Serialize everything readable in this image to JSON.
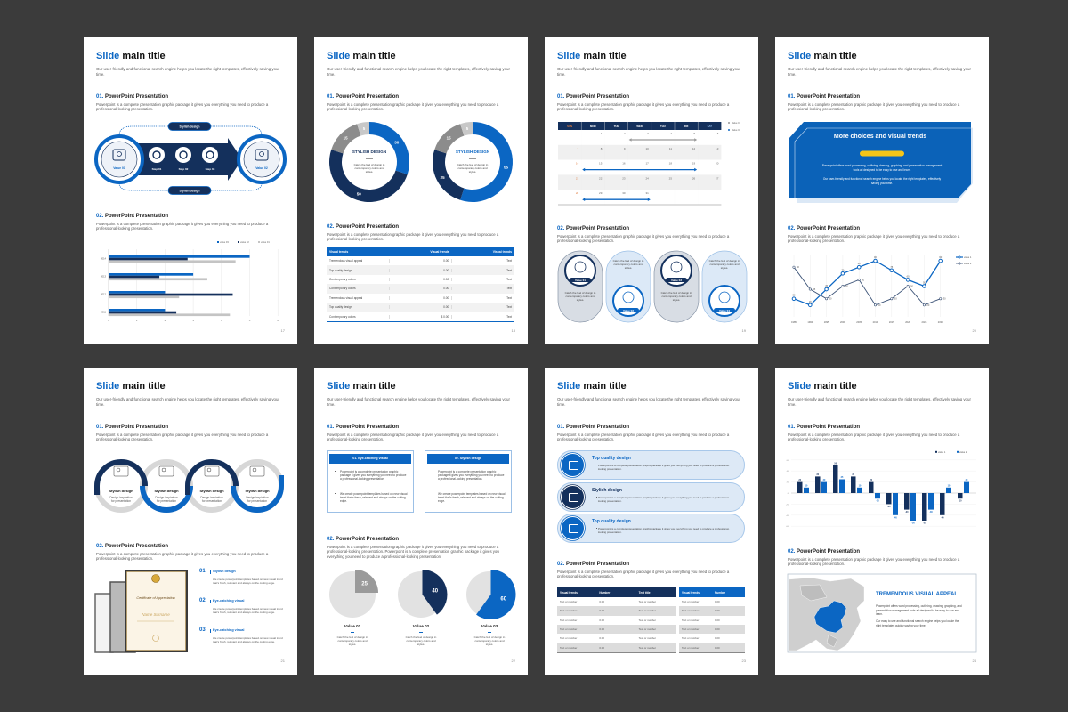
{
  "colors": {
    "background": "#3b3b3b",
    "blue": "#0b66c3",
    "navy": "#14305c",
    "gray": "#9a9a9a",
    "light_gray": "#d9d9d9",
    "orange": "#e07a3c",
    "yellow": "#f5c518"
  },
  "common": {
    "title_accent": "Slide",
    "title_rest": "main title",
    "subtitle": "Our user-friendly and functional search engine helps you locate the right templates, effectively saving your time.",
    "sec1_num": "01.",
    "sec2_num": "02.",
    "sec_title": "PowerPoint Presentation",
    "sec_body": "Powerpoint is a complete presentation graphic package it gives you everything you need to produce a professional-looking presentation."
  },
  "slides": [
    {
      "page": "17",
      "diagram": {
        "top_label": "Stylish design",
        "bottom_label": "Stylish design",
        "start": "Value 01",
        "steps": [
          "Step 01",
          "Step 02",
          "Step 03"
        ],
        "end": "Value 02",
        "icons": [
          "buildings-icon",
          "megaphone-icon",
          "team-icon",
          "meeting-icon",
          "handshake-icon"
        ]
      },
      "chart_data": {
        "type": "bar",
        "orientation": "horizontal",
        "categories": [
          "2014",
          "2013",
          "2012",
          "2011"
        ],
        "series": [
          {
            "name": "value 03",
            "values": [
              5,
              3,
              2,
              2
            ]
          },
          {
            "name": "value 02",
            "values": [
              2.8,
              1.8,
              4.4,
              2.4
            ]
          },
          {
            "name": "value 01",
            "values": [
              4.5,
              3.5,
              2.5,
              4.3
            ]
          }
        ],
        "xlim": [
          0,
          6
        ],
        "xticks": [
          "0",
          "1",
          "2",
          "3",
          "4",
          "5",
          "6"
        ],
        "grid": true,
        "legend": "top-right"
      }
    },
    {
      "page": "18",
      "donuts": [
        {
          "values": [
            30,
            50,
            15,
            5
          ],
          "labels": [
            "30",
            "50",
            "15",
            "5"
          ],
          "title": "STYLISH DESIGN",
          "desc": "Catch the feel of design in contemporary colors and styles."
        },
        {
          "values": [
            55,
            25,
            15,
            5
          ],
          "labels": [
            "55",
            "25",
            "15",
            "5"
          ],
          "title": "STYLISH DESIGN",
          "desc": "Catch the feel of design in contemporary colors and styles."
        }
      ],
      "table": {
        "headers": [
          "Visual trends",
          "Visual trends",
          "Visual trends"
        ],
        "rows": [
          [
            "Tremendous visual appeal",
            "0.00",
            "Text"
          ],
          [
            "Top quality design",
            "0.00",
            "Text"
          ],
          [
            "Contemporary colors",
            "0.00",
            "Text"
          ],
          [
            "Contemporary colors",
            "0.00",
            "Text"
          ],
          [
            "Tremendous visual appeal",
            "0.00",
            "Text"
          ],
          [
            "Top quality design",
            "0.00",
            "Text"
          ],
          [
            "Contemporary colors",
            "$ 0.00",
            "Text"
          ]
        ]
      }
    },
    {
      "page": "19",
      "calendar": {
        "weekdays": [
          "SUN",
          "MON",
          "TUE",
          "WED",
          "THU",
          "FRI",
          "SAT"
        ],
        "days": [
          "1",
          "2",
          "3",
          "4",
          "5",
          "6",
          "7",
          "8",
          "9",
          "10",
          "11",
          "12",
          "13",
          "14",
          "15",
          "16",
          "17",
          "18",
          "19",
          "20",
          "21",
          "22",
          "23",
          "24",
          "25",
          "26",
          "27",
          "28",
          "29",
          "30",
          "31"
        ],
        "first_weekday": 1,
        "legend": [
          "Value 01",
          "Value 02"
        ],
        "ranges": [
          {
            "series": 0,
            "from": 3,
            "to": 5
          },
          {
            "series": 1,
            "from": 15,
            "to": 19
          },
          {
            "series": 1,
            "from": 29,
            "to": 31
          }
        ]
      },
      "cards": [
        {
          "label": "Value 01",
          "text": "Catch the feel of design in contemporary colors and styles.",
          "icon": "megaphone-icon"
        },
        {
          "label": "Value 02",
          "text": "Catch the feel of design in contemporary colors and styles.",
          "icon": "team-icon"
        },
        {
          "label": "Value 03",
          "text": "Catch the feel of design in contemporary colors and styles.",
          "icon": "presenter-icon"
        },
        {
          "label": "Value 04",
          "text": "Catch the feel of design in contemporary colors and styles.",
          "icon": "globe-icon"
        }
      ]
    },
    {
      "page": "20",
      "banner": {
        "title": "More choices and visual trends",
        "para1": "Powerpoint offers word processing, outlining, drawing, graphing, and presentation management tools all designed to be easy to use and learn.",
        "para2": "Our user-friendly and functional search engine helps you locate the right templates, effectively saving your time."
      },
      "chart_data": {
        "type": "line",
        "x": [
          "1985",
          "1990",
          "1995",
          "2000",
          "2005",
          "2010",
          "2015",
          "2020",
          "2025",
          "2030"
        ],
        "series": [
          {
            "name": "value 1",
            "values": [
              30,
              20,
              45,
              70,
              80,
              90,
              75,
              60,
              50,
              90
            ]
          },
          {
            "name": "value 2",
            "values": [
              80,
              45,
              30,
              50,
              60,
              20,
              30,
              50,
              20,
              30
            ]
          }
        ],
        "ylim": [
          0,
          100
        ],
        "grid": true,
        "legend": "top-right"
      }
    },
    {
      "page": "21",
      "loops": [
        {
          "title": "Stylish design",
          "desc": "Design inspiration for presentation"
        },
        {
          "title": "Stylish design",
          "desc": "Design inspiration for presentation"
        },
        {
          "title": "Stylish design",
          "desc": "Design inspiration for presentation"
        },
        {
          "title": "Stylish design",
          "desc": "Design inspiration for presentation"
        }
      ],
      "certificate": {
        "title": "Certificate of Appreciation",
        "name": "Name Surname"
      },
      "list": [
        {
          "num": "01",
          "title": "Stylish design",
          "text": "We create powerpoint templates based on new visual trend that's fresh, relevant and always on the cutting edge."
        },
        {
          "num": "02",
          "title": "Eye-catching visual",
          "text": "We create powerpoint templates based on new visual trend that's fresh, relevant and always on the cutting edge."
        },
        {
          "num": "03",
          "title": "Eye-catching visual",
          "text": "We create powerpoint templates based on new visual trend that's fresh, relevant and always on the cutting edge."
        }
      ]
    },
    {
      "page": "22",
      "boxes": [
        {
          "title": "01. Eye-catching visual",
          "bullets": [
            "Powerpoint is a complete presentation graphic package it gives you everything you need to produce a professional-looking presentation.",
            "We create powerpoint templates based on new visual trend that's fresh, relevant and always on the cutting edge."
          ]
        },
        {
          "title": "02. Stylish design",
          "bullets": [
            "Powerpoint is a complete presentation graphic package it gives you everything you need to produce a professional-looking presentation.",
            "We create powerpoint templates based on new visual trend that's fresh, relevant and always on the cutting edge."
          ]
        }
      ],
      "sec2_body": "Powerpoint is a complete presentation graphic package it gives you everything you need to produce a professional-looking presentation. Powerpoint is a complete presentation graphic package it gives you everything you need to produce a professional-looking presentation.",
      "pies": [
        {
          "value": 25,
          "label": "25",
          "title": "Value 01",
          "desc": "Catch the feel of design in contemporary colors and styles."
        },
        {
          "value": 40,
          "label": "40",
          "title": "Value 02",
          "desc": "Catch the feel of design in contemporary colors and styles."
        },
        {
          "value": 60,
          "label": "60",
          "title": "Value 03",
          "desc": "Catch the feel of design in contemporary colors and styles."
        }
      ]
    },
    {
      "page": "23",
      "pills": [
        {
          "title": "Top quality design",
          "text": "Powerpoint is a complete presentation graphic package it gives you everything you need to produce a professional-looking presentation.",
          "icon": "presentation-board-icon"
        },
        {
          "title": "Stylish design",
          "text": "Powerpoint is a complete presentation graphic package it gives you everything you need to produce a professional-looking presentation.",
          "icon": "team-icon"
        },
        {
          "title": "Top quality design",
          "text": "Powerpoint is a complete presentation graphic package it gives you everything you need to produce a professional-looking presentation.",
          "icon": "megaphone-icon"
        }
      ],
      "table1": {
        "headers": [
          "Visual trends",
          "Number",
          "Text title"
        ],
        "rows": [
          [
            "Text or number",
            "0.00",
            "Text or number"
          ],
          [
            "Text or number",
            "0.00",
            "Text or number"
          ],
          [
            "Text or number",
            "0.00",
            "Text or number"
          ],
          [
            "Text or number",
            "0.00",
            "Text or number"
          ],
          [
            "Text or number",
            "0.00",
            "Text or number"
          ],
          [
            "Text or number",
            "0.00",
            "Text or number"
          ]
        ]
      },
      "table2": {
        "headers": [
          "Visual trends",
          "Number"
        ],
        "rows": [
          [
            "Text or number",
            "0.00"
          ],
          [
            "Text or number",
            "0.00"
          ],
          [
            "Text or number",
            "0.00"
          ],
          [
            "Text or number",
            "0.00"
          ],
          [
            "Text or number",
            "0.00"
          ],
          [
            "Text or number",
            "0.00"
          ]
        ]
      }
    },
    {
      "page": "24",
      "chart_data": {
        "type": "bar",
        "series": [
          {
            "name": "value 1",
            "values": [
              20,
              30,
              50,
              30,
              20,
              -20,
              -30,
              -50,
              -40,
              -10
            ]
          },
          {
            "name": "value 2",
            "values": [
              10,
              20,
              25,
              10,
              -10,
              -40,
              -50,
              -30,
              10,
              20
            ]
          }
        ],
        "ylim": [
          -60,
          60
        ],
        "grid": true,
        "legend": "top-right"
      },
      "map_panel": {
        "title": "TREMENDOUS VISUAL APPEAL",
        "para1": "Powerpoint offers word processing, outlining, drawing, graphing, and presentation management tools all designed to be easy to use and learn.",
        "para2": "Our easy to use and functional search engine helps you locate the right templates quickly saving your time.",
        "highlight": "China"
      }
    }
  ]
}
